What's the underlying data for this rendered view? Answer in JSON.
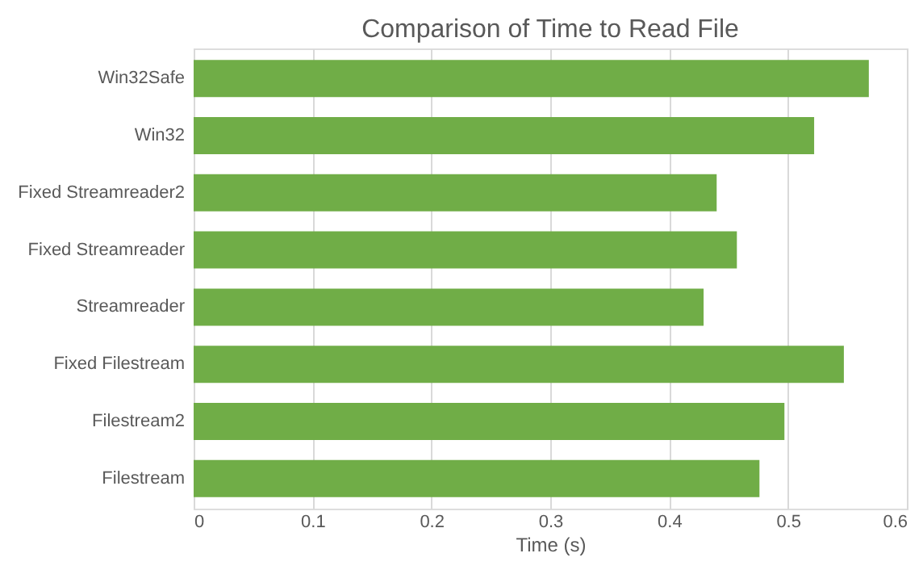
{
  "chart_data": {
    "type": "bar",
    "orientation": "horizontal",
    "title": "Comparison of Time to Read File",
    "xlabel": "Time (s)",
    "categories": [
      "Win32Safe",
      "Win32",
      "Fixed Streamreader2",
      "Fixed Streamreader",
      "Streamreader",
      "Fixed Filestream",
      "Filestream2",
      "Filestream"
    ],
    "values": [
      0.568,
      0.522,
      0.44,
      0.457,
      0.429,
      0.547,
      0.497,
      0.476
    ],
    "color": "#70ad47",
    "xlim": [
      0,
      0.6
    ],
    "xticks": [
      0,
      0.1,
      0.2,
      0.3,
      0.4,
      0.5,
      0.6
    ],
    "grid": "x"
  }
}
